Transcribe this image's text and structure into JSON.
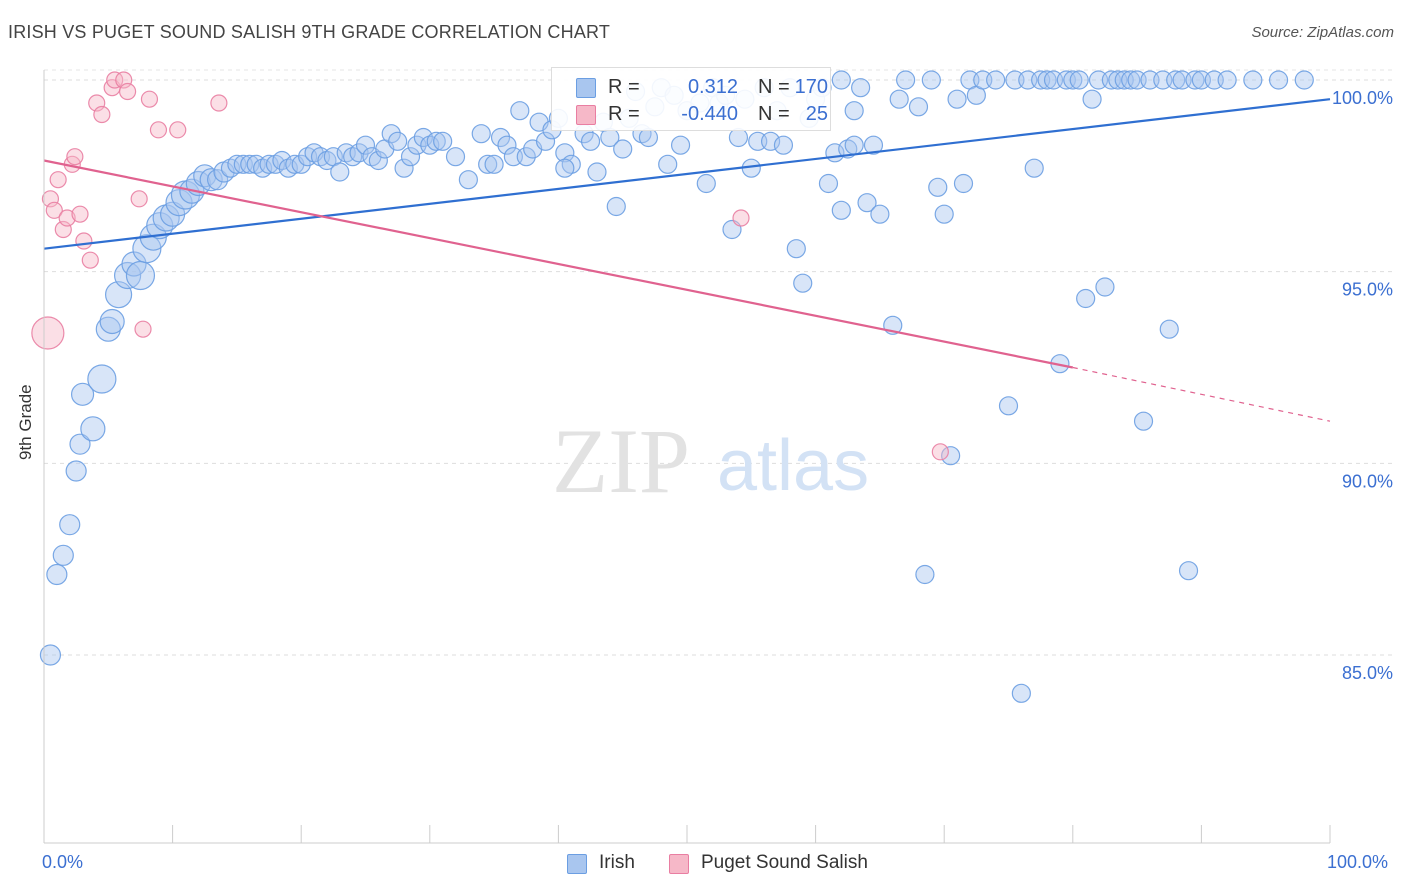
{
  "title": "IRISH VS PUGET SOUND SALISH 9TH GRADE CORRELATION CHART",
  "source": "Source: ZipAtlas.com",
  "legend_top": {
    "rows": [
      {
        "r_label": "R =",
        "r_value": "0.312",
        "n_label": "N =",
        "n_value": "170",
        "color": "#a9c6ef"
      },
      {
        "r_label": "R =",
        "r_value": "-0.440",
        "n_label": "N =",
        "n_value": "25",
        "color": "#f6b8c8"
      }
    ]
  },
  "legend_bottom": [
    {
      "label": "Irish",
      "color": "#a9c6ef"
    },
    {
      "label": "Puget Sound Salish",
      "color": "#f6b8c8"
    }
  ],
  "watermark": {
    "zip": "ZIP",
    "atlas": "atlas"
  },
  "chart_data": {
    "type": "scatter",
    "title": "IRISH VS PUGET SOUND SALISH 9TH GRADE CORRELATION CHART",
    "xlabel": "",
    "ylabel": "9th Grade",
    "xlim": [
      0,
      100
    ],
    "ylim": [
      80.5,
      100.8
    ],
    "x_tick_labels": [
      "0.0%",
      "100.0%"
    ],
    "y_ticks": [
      85,
      90,
      95,
      100
    ],
    "y_tick_labels": [
      "85.0%",
      "90.0%",
      "95.0%",
      "100.0%"
    ],
    "grid": true,
    "legend_position": "top-center",
    "series": [
      {
        "name": "Irish",
        "color": "#6b9ee2",
        "fill": "#a9c6ef",
        "trend": {
          "x": [
            0,
            100
          ],
          "y": [
            95.6,
            99.5
          ]
        },
        "points": [
          [
            0.5,
            85.0,
            10
          ],
          [
            1,
            87.1,
            10
          ],
          [
            1.5,
            87.6,
            10
          ],
          [
            2,
            88.4,
            10
          ],
          [
            2.5,
            89.8,
            10
          ],
          [
            2.8,
            90.5,
            10
          ],
          [
            3,
            91.8,
            11
          ],
          [
            3.8,
            90.9,
            12
          ],
          [
            4.5,
            92.2,
            14
          ],
          [
            5,
            93.5,
            12
          ],
          [
            5.3,
            93.7,
            12
          ],
          [
            5.8,
            94.4,
            13
          ],
          [
            6.5,
            94.9,
            13
          ],
          [
            7,
            95.2,
            12
          ],
          [
            7.5,
            94.9,
            14
          ],
          [
            8,
            95.6,
            14
          ],
          [
            8.5,
            95.9,
            13
          ],
          [
            9,
            96.2,
            13
          ],
          [
            9.5,
            96.4,
            13
          ],
          [
            10,
            96.5,
            12
          ],
          [
            10.5,
            96.8,
            13
          ],
          [
            11,
            97.0,
            14
          ],
          [
            11.5,
            97.1,
            12
          ],
          [
            12,
            97.3,
            12
          ],
          [
            12.5,
            97.5,
            11
          ],
          [
            13,
            97.4,
            11
          ],
          [
            13.5,
            97.4,
            10
          ],
          [
            14,
            97.6,
            10
          ],
          [
            14.5,
            97.7,
            9
          ],
          [
            15,
            97.8,
            9
          ],
          [
            15.5,
            97.8,
            9
          ],
          [
            16,
            97.8,
            9
          ],
          [
            16.5,
            97.8,
            9
          ],
          [
            17,
            97.7,
            9
          ],
          [
            17.5,
            97.8,
            9
          ],
          [
            18,
            97.8,
            9
          ],
          [
            18.5,
            97.9,
            9
          ],
          [
            19,
            97.7,
            9
          ],
          [
            19.5,
            97.8,
            9
          ],
          [
            20,
            97.8,
            9
          ],
          [
            20.5,
            98.0,
            9
          ],
          [
            21,
            98.1,
            9
          ],
          [
            21.5,
            98.0,
            9
          ],
          [
            22,
            97.9,
            9
          ],
          [
            22.5,
            98.0,
            9
          ],
          [
            23,
            97.6,
            9
          ],
          [
            23.5,
            98.1,
            9
          ],
          [
            24,
            98.0,
            9
          ],
          [
            24.5,
            98.1,
            9
          ],
          [
            25,
            98.3,
            9
          ],
          [
            25.5,
            98.0,
            9
          ],
          [
            26,
            97.9,
            9
          ],
          [
            26.5,
            98.2,
            9
          ],
          [
            27,
            98.6,
            9
          ],
          [
            27.5,
            98.4,
            9
          ],
          [
            28,
            97.7,
            9
          ],
          [
            28.5,
            98.0,
            9
          ],
          [
            29,
            98.3,
            9
          ],
          [
            29.5,
            98.5,
            9
          ],
          [
            30,
            98.3,
            9
          ],
          [
            30.5,
            98.4,
            9
          ],
          [
            31,
            98.4,
            9
          ],
          [
            32,
            98.0,
            9
          ],
          [
            33,
            97.4,
            9
          ],
          [
            34,
            98.6,
            9
          ],
          [
            34.5,
            97.8,
            9
          ],
          [
            35,
            97.8,
            9
          ],
          [
            35.5,
            98.5,
            9
          ],
          [
            36,
            98.3,
            9
          ],
          [
            36.5,
            98.0,
            9
          ],
          [
            37,
            99.2,
            9
          ],
          [
            37.5,
            98.0,
            9
          ],
          [
            38,
            98.2,
            9
          ],
          [
            38.5,
            98.9,
            9
          ],
          [
            39,
            98.4,
            9
          ],
          [
            39.5,
            98.7,
            9
          ],
          [
            40,
            99.0,
            9
          ],
          [
            40.5,
            98.1,
            9
          ],
          [
            41,
            97.8,
            9
          ],
          [
            42,
            98.6,
            9
          ],
          [
            42.5,
            98.4,
            9
          ],
          [
            43,
            97.6,
            9
          ],
          [
            43.5,
            98.9,
            9
          ],
          [
            44,
            98.5,
            9
          ],
          [
            44.5,
            96.7,
            9
          ],
          [
            45,
            98.2,
            9
          ],
          [
            45.5,
            99.0,
            9
          ],
          [
            46,
            99.7,
            9
          ],
          [
            46.5,
            98.6,
            9
          ],
          [
            47,
            98.5,
            9
          ],
          [
            47.5,
            99.3,
            9
          ],
          [
            48,
            99.8,
            9
          ],
          [
            48.5,
            97.8,
            9
          ],
          [
            49,
            99.6,
            9
          ],
          [
            49.5,
            98.3,
            9
          ],
          [
            50,
            99.2,
            9
          ],
          [
            51,
            99.4,
            9
          ],
          [
            51.5,
            97.3,
            9
          ],
          [
            52,
            99.8,
            9
          ],
          [
            52.5,
            99.4,
            9
          ],
          [
            53,
            99.6,
            9
          ],
          [
            53.5,
            96.1,
            9
          ],
          [
            54,
            98.5,
            9
          ],
          [
            54.5,
            99.5,
            9
          ],
          [
            55,
            97.7,
            9
          ],
          [
            55.5,
            98.4,
            9
          ],
          [
            56,
            99.8,
            9
          ],
          [
            56.5,
            98.4,
            9
          ],
          [
            57,
            99.2,
            9
          ],
          [
            57.5,
            98.3,
            9
          ],
          [
            58,
            99.8,
            9
          ],
          [
            58.5,
            95.6,
            9
          ],
          [
            59,
            94.7,
            9
          ],
          [
            59.5,
            99.0,
            9
          ],
          [
            60,
            99.5,
            9
          ],
          [
            60.5,
            99.8,
            9
          ],
          [
            61,
            97.3,
            9
          ],
          [
            61.5,
            98.1,
            9
          ],
          [
            62,
            96.6,
            9
          ],
          [
            62.5,
            98.2,
            9
          ],
          [
            63,
            99.2,
            9
          ],
          [
            63.5,
            99.8,
            9
          ],
          [
            64,
            96.8,
            9
          ],
          [
            64.5,
            98.3,
            9
          ],
          [
            65,
            96.5,
            9
          ],
          [
            66,
            93.6,
            9
          ],
          [
            66.5,
            99.5,
            9
          ],
          [
            67,
            100,
            9
          ],
          [
            68,
            99.3,
            9
          ],
          [
            68.5,
            87.1,
            9
          ],
          [
            69,
            100,
            9
          ],
          [
            69.5,
            97.2,
            9
          ],
          [
            70,
            96.5,
            9
          ],
          [
            70.5,
            90.2,
            9
          ],
          [
            71,
            99.5,
            9
          ],
          [
            71.5,
            97.3,
            9
          ],
          [
            72,
            100,
            9
          ],
          [
            72.5,
            99.6,
            9
          ],
          [
            73,
            100,
            9
          ],
          [
            74,
            100,
            9
          ],
          [
            75,
            91.5,
            9
          ],
          [
            75.5,
            100,
            9
          ],
          [
            76,
            84.0,
            9
          ],
          [
            76.5,
            100,
            9
          ],
          [
            77,
            97.7,
            9
          ],
          [
            77.5,
            100,
            9
          ],
          [
            78,
            100,
            9
          ],
          [
            78.5,
            100,
            9
          ],
          [
            79,
            92.6,
            9
          ],
          [
            79.5,
            100,
            9
          ],
          [
            80,
            100,
            9
          ],
          [
            80.5,
            100,
            9
          ],
          [
            81,
            94.3,
            9
          ],
          [
            81.5,
            99.5,
            9
          ],
          [
            82,
            100,
            9
          ],
          [
            82.5,
            94.6,
            9
          ],
          [
            83,
            100,
            9
          ],
          [
            83.5,
            100,
            9
          ],
          [
            84,
            100,
            9
          ],
          [
            84.5,
            100,
            9
          ],
          [
            85,
            100,
            9
          ],
          [
            85.5,
            91.1,
            9
          ],
          [
            86,
            100,
            9
          ],
          [
            87,
            100,
            9
          ],
          [
            87.5,
            93.5,
            9
          ],
          [
            88,
            100,
            9
          ],
          [
            88.5,
            100,
            9
          ],
          [
            89,
            87.2,
            9
          ],
          [
            89.5,
            100,
            9
          ],
          [
            90,
            100,
            9
          ],
          [
            91,
            100,
            9
          ],
          [
            92,
            100,
            9
          ],
          [
            94,
            100,
            9
          ],
          [
            96,
            100,
            9
          ],
          [
            98,
            100,
            9
          ],
          [
            40.5,
            97.7,
            9
          ],
          [
            62,
            100,
            9
          ],
          [
            63,
            98.3,
            9
          ]
        ]
      },
      {
        "name": "Puget Sound Salish",
        "color": "#e97ea2",
        "fill": "#f6b8c8",
        "trend": {
          "x": [
            0,
            80,
            100
          ],
          "y": [
            97.9,
            92.5,
            91.1
          ]
        },
        "points": [
          [
            0.3,
            93.4,
            16
          ],
          [
            0.5,
            96.9,
            8
          ],
          [
            0.8,
            96.6,
            8
          ],
          [
            1.1,
            97.4,
            8
          ],
          [
            1.5,
            96.1,
            8
          ],
          [
            1.8,
            96.4,
            8
          ],
          [
            2.2,
            97.8,
            8
          ],
          [
            2.4,
            98.0,
            8
          ],
          [
            2.8,
            96.5,
            8
          ],
          [
            3.1,
            95.8,
            8
          ],
          [
            3.6,
            95.3,
            8
          ],
          [
            4.1,
            99.4,
            8
          ],
          [
            4.5,
            99.1,
            8
          ],
          [
            5.3,
            99.8,
            8
          ],
          [
            5.5,
            100,
            8
          ],
          [
            6.2,
            100,
            8
          ],
          [
            6.5,
            99.7,
            8
          ],
          [
            7.4,
            96.9,
            8
          ],
          [
            7.7,
            93.5,
            8
          ],
          [
            8.2,
            99.5,
            8
          ],
          [
            8.9,
            98.7,
            8
          ],
          [
            10.4,
            98.7,
            8
          ],
          [
            13.6,
            99.4,
            8
          ],
          [
            54.2,
            96.4,
            8
          ],
          [
            69.7,
            90.3,
            8
          ]
        ]
      }
    ]
  }
}
